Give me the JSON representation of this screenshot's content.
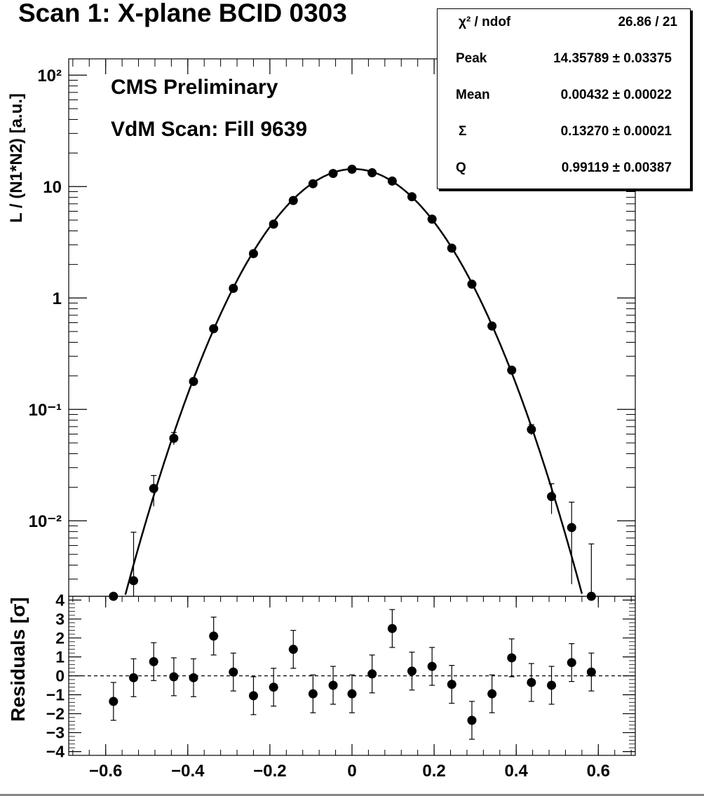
{
  "header": {
    "title": "Scan 1: X-plane BCID 0303"
  },
  "annotations": {
    "line1": "CMS Preliminary",
    "line2": "VdM Scan: Fill 9639"
  },
  "stats_box": {
    "rows": [
      {
        "name": "χ² / ndof",
        "value": "26.86 / 21"
      },
      {
        "name": "Peak",
        "value": "14.35789 ± 0.03375"
      },
      {
        "name": "Mean",
        "value": "0.00432 ± 0.00022"
      },
      {
        "name": "Σ",
        "value": "0.13270 ± 0.00021"
      },
      {
        "name": "Q",
        "value": "0.99119 ± 0.00387"
      }
    ]
  },
  "chart_data": [
    {
      "type": "scatter",
      "panel": "main",
      "ylabel": "L / (N1*N2) [a.u.]",
      "y_scale": "log",
      "xlim": [
        -0.69,
        0.69
      ],
      "ylim": [
        0.0021,
        140
      ],
      "yticks": [
        "10²",
        "10",
        "1",
        "10⁻¹",
        "10⁻²"
      ],
      "points": [
        {
          "x": -0.581,
          "y": 0.0021,
          "err": 0.0
        },
        {
          "x": -0.532,
          "y": 0.0029,
          "err": 0.005
        },
        {
          "x": -0.483,
          "y": 0.0195,
          "err": 0.006
        },
        {
          "x": -0.434,
          "y": 0.055,
          "err": 0.007
        },
        {
          "x": -0.386,
          "y": 0.178,
          "err": 0.008
        },
        {
          "x": -0.337,
          "y": 0.53,
          "err": 0.01
        },
        {
          "x": -0.289,
          "y": 1.22,
          "err": 0.012
        },
        {
          "x": -0.24,
          "y": 2.5,
          "err": 0.015
        },
        {
          "x": -0.191,
          "y": 4.6,
          "err": 0.02
        },
        {
          "x": -0.143,
          "y": 7.5,
          "err": 0.02
        },
        {
          "x": -0.095,
          "y": 10.6,
          "err": 0.03
        },
        {
          "x": -0.046,
          "y": 13.1,
          "err": 0.03
        },
        {
          "x": 0.0,
          "y": 14.3,
          "err": 0.03
        },
        {
          "x": 0.049,
          "y": 13.3,
          "err": 0.03
        },
        {
          "x": 0.098,
          "y": 11.2,
          "err": 0.03
        },
        {
          "x": 0.146,
          "y": 8.1,
          "err": 0.02
        },
        {
          "x": 0.195,
          "y": 5.1,
          "err": 0.02
        },
        {
          "x": 0.243,
          "y": 2.8,
          "err": 0.015
        },
        {
          "x": 0.292,
          "y": 1.33,
          "err": 0.012
        },
        {
          "x": 0.341,
          "y": 0.56,
          "err": 0.01
        },
        {
          "x": 0.389,
          "y": 0.225,
          "err": 0.008
        },
        {
          "x": 0.437,
          "y": 0.066,
          "err": 0.007
        },
        {
          "x": 0.486,
          "y": 0.0165,
          "err": 0.005
        },
        {
          "x": 0.535,
          "y": 0.0087,
          "err": 0.006
        },
        {
          "x": 0.583,
          "y": 0.0021,
          "err": 0.0041
        }
      ],
      "fit": {
        "function": "double_gaussian",
        "peak": 14.35789,
        "mean": 0.00432,
        "sigma": 0.1327,
        "q": 0.99119,
        "chi2_ndof": "26.86 / 21"
      }
    },
    {
      "type": "scatter",
      "panel": "residuals",
      "ylabel": "Residuals [σ]",
      "xlim": [
        -0.69,
        0.69
      ],
      "ylim": [
        -4.2,
        4.2
      ],
      "yticks": [
        "4",
        "3",
        "2",
        "1",
        "0",
        "−1",
        "−2",
        "−3",
        "−4"
      ],
      "xticks": [
        "−0.6",
        "−0.4",
        "−0.2",
        "0",
        "0.2",
        "0.4",
        "0.6"
      ],
      "reference_line": 0,
      "points": [
        {
          "x": -0.581,
          "y": -1.35,
          "err": 1
        },
        {
          "x": -0.532,
          "y": -0.1,
          "err": 1
        },
        {
          "x": -0.483,
          "y": 0.75,
          "err": 1
        },
        {
          "x": -0.434,
          "y": -0.05,
          "err": 1
        },
        {
          "x": -0.386,
          "y": -0.1,
          "err": 1
        },
        {
          "x": -0.337,
          "y": 2.1,
          "err": 1
        },
        {
          "x": -0.289,
          "y": 0.2,
          "err": 1
        },
        {
          "x": -0.24,
          "y": -1.05,
          "err": 1
        },
        {
          "x": -0.191,
          "y": -0.6,
          "err": 1
        },
        {
          "x": -0.143,
          "y": 1.4,
          "err": 1
        },
        {
          "x": -0.095,
          "y": -0.95,
          "err": 1
        },
        {
          "x": -0.046,
          "y": -0.5,
          "err": 1
        },
        {
          "x": 0.0,
          "y": -0.95,
          "err": 1
        },
        {
          "x": 0.049,
          "y": 0.1,
          "err": 1
        },
        {
          "x": 0.098,
          "y": 2.5,
          "err": 1
        },
        {
          "x": 0.146,
          "y": 0.25,
          "err": 1
        },
        {
          "x": 0.195,
          "y": 0.5,
          "err": 1
        },
        {
          "x": 0.243,
          "y": -0.45,
          "err": 1
        },
        {
          "x": 0.292,
          "y": -2.35,
          "err": 1
        },
        {
          "x": 0.341,
          "y": -0.95,
          "err": 1
        },
        {
          "x": 0.389,
          "y": 0.95,
          "err": 1
        },
        {
          "x": 0.437,
          "y": -0.35,
          "err": 1
        },
        {
          "x": 0.486,
          "y": -0.5,
          "err": 1
        },
        {
          "x": 0.535,
          "y": 0.7,
          "err": 1
        },
        {
          "x": 0.583,
          "y": 0.2,
          "err": 1
        }
      ]
    }
  ]
}
